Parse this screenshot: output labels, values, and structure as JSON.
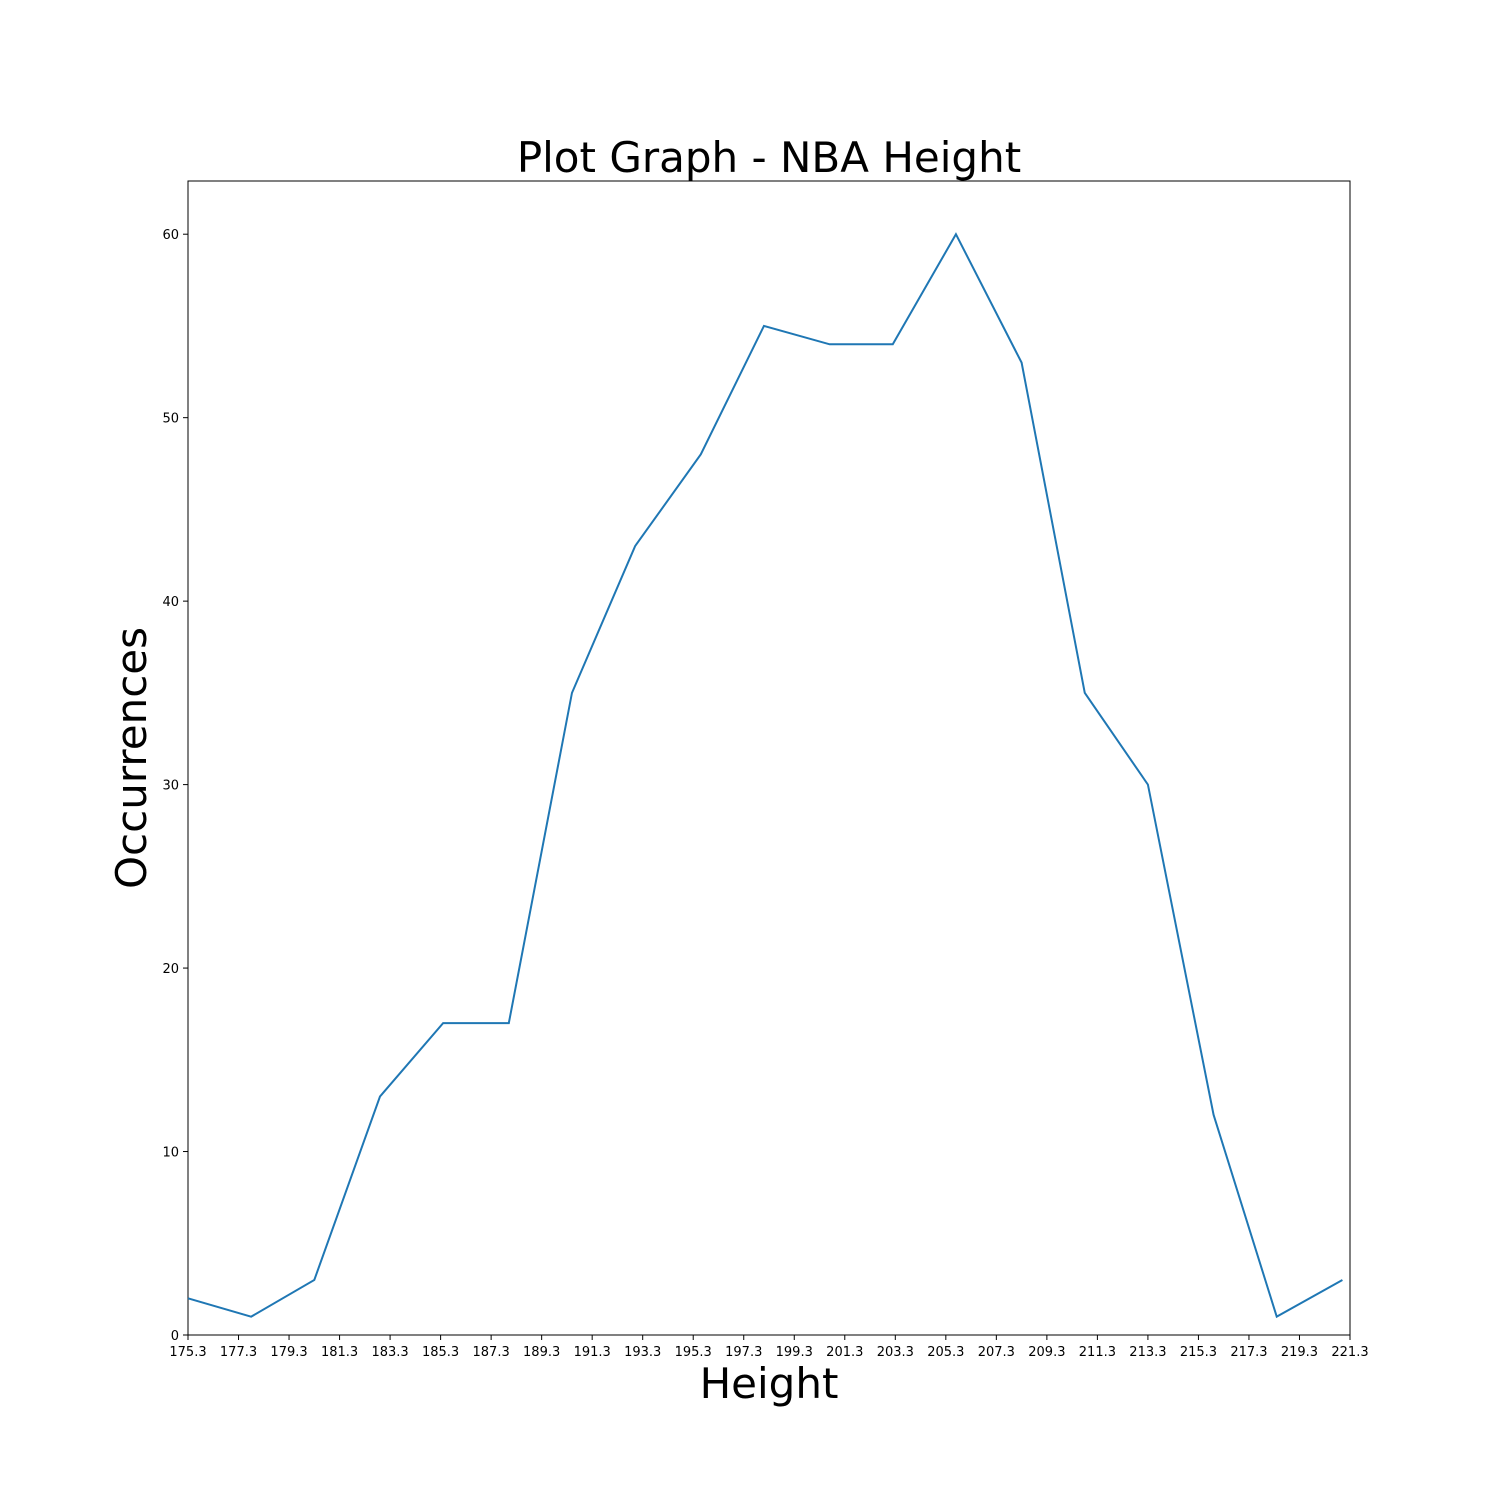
{
  "chart_data": {
    "type": "line",
    "title": "Plot Graph - NBA Height",
    "xlabel": "Height",
    "ylabel": "Occurrences",
    "xlim": [
      175.3,
      221.3
    ],
    "ylim": [
      0,
      62.9
    ],
    "grid": false,
    "x_ticks": [
      175.3,
      177.3,
      179.3,
      181.3,
      183.3,
      185.3,
      187.3,
      189.3,
      191.3,
      193.3,
      195.3,
      197.3,
      199.3,
      201.3,
      203.3,
      205.3,
      207.3,
      209.3,
      211.3,
      213.3,
      215.3,
      217.3,
      219.3,
      221.3
    ],
    "x_tick_labels": [
      "175.3",
      "177.3",
      "179.3",
      "181.3",
      "183.3",
      "185.3",
      "187.3",
      "189.3",
      "191.3",
      "193.3",
      "195.3",
      "197.3",
      "199.3",
      "201.3",
      "203.3",
      "205.3",
      "207.3",
      "209.3",
      "211.3",
      "213.3",
      "215.3",
      "217.3",
      "219.3",
      "221.3"
    ],
    "y_ticks": [
      0,
      10,
      20,
      30,
      40,
      50,
      60
    ],
    "y_tick_labels": [
      "0",
      "10",
      "20",
      "30",
      "40",
      "50",
      "60"
    ],
    "series": [
      {
        "color": "#1f77b4",
        "x": [
          175.3,
          177.8,
          180.3,
          182.9,
          185.4,
          188.0,
          190.5,
          193.0,
          195.6,
          198.1,
          200.7,
          203.2,
          205.7,
          208.3,
          210.8,
          213.3,
          215.9,
          218.4,
          221.0
        ],
        "y": [
          2,
          1,
          3,
          13,
          17,
          17,
          35,
          43,
          48,
          55,
          54,
          54,
          60,
          53,
          35,
          30,
          12,
          1,
          3
        ]
      }
    ]
  }
}
